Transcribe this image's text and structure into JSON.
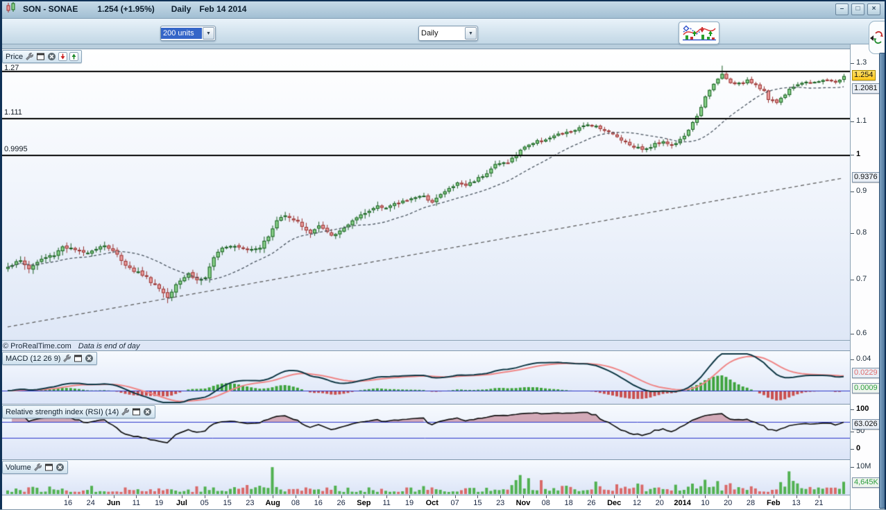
{
  "titlebar": {
    "symbol": "SON - SONAE",
    "quote": "1.254 (+1.95%)",
    "timeframe": "Daily",
    "date": "Feb 14 2014"
  },
  "window_controls": {
    "minimize": "–",
    "maximize": "□",
    "close": "×"
  },
  "toolbar": {
    "units_value": "200 units",
    "timeframe_value": "Daily"
  },
  "price_panel": {
    "title": "Price",
    "copyright": "© ProRealTime.com",
    "note": "Data is end of day",
    "level_labels": [
      "1.27",
      "1.111",
      "0.9995"
    ],
    "ticks": [
      "1.3",
      "1.1",
      "1",
      "0.9",
      "0.8",
      "0.7",
      "0.6"
    ],
    "badge_last": "1.254",
    "badge_ma_short": "1.2081",
    "badge_ma_long": "0.9376"
  },
  "macd_panel": {
    "title": "MACD (12 26 9)",
    "ticks": [
      "0.04"
    ],
    "badge_macd": "0.0229",
    "badge_signal": "0.0009"
  },
  "rsi_panel": {
    "title": "Relative strength index (RSI) (14)",
    "ticks": [
      "100",
      "50",
      "0"
    ],
    "badge": "63.026"
  },
  "volume_panel": {
    "title": "Volume",
    "ticks": [
      "10M"
    ],
    "badge": "4,645K"
  },
  "colors": {
    "up_fill": "#8bd48b",
    "up_border": "#145a1e",
    "down_fill": "#eb9c9c",
    "down_border": "#96312f",
    "ma_short": "#4a5560",
    "ma_long": "#555555",
    "level_line": "#000000",
    "macd_line": "#0e3744",
    "signal_line": "#ef8585",
    "zero_line": "#2b35c8",
    "hist_up": "#3da33d",
    "hist_down": "#c94f4f",
    "rsi_line": "#111111",
    "rsi_ref": "#2b35c8",
    "rsi_fill": "rgba(186,108,128,0.55)",
    "vol_up": "#51b151",
    "vol_down": "#d96a6a"
  },
  "chart_data": {
    "type": "candlestick",
    "title": "SON - SONAE Daily",
    "last_price": 1.254,
    "change_pct": "+1.95%",
    "visible_candles": 200,
    "scale": "log",
    "y_range": [
      0.59,
      1.31
    ],
    "price_axis_ticks": [
      1.3,
      1.1,
      1,
      0.9,
      0.8,
      0.7,
      0.6
    ],
    "horizontal_levels": [
      1.27,
      1.111,
      0.9995
    ],
    "ma_short_last": 1.2081,
    "ma_long_last": 0.9376,
    "ma_long_line": [
      [
        0,
        0.613
      ],
      [
        199,
        0.9376
      ]
    ],
    "close_anchors": [
      [
        0,
        0.73
      ],
      [
        3,
        0.74
      ],
      [
        5,
        0.724
      ],
      [
        8,
        0.744
      ],
      [
        11,
        0.754
      ],
      [
        13,
        0.772
      ],
      [
        15,
        0.766
      ],
      [
        18,
        0.757
      ],
      [
        21,
        0.768
      ],
      [
        23,
        0.775
      ],
      [
        26,
        0.752
      ],
      [
        29,
        0.724
      ],
      [
        32,
        0.712
      ],
      [
        35,
        0.692
      ],
      [
        38,
        0.668
      ],
      [
        40,
        0.695
      ],
      [
        43,
        0.714
      ],
      [
        45,
        0.7
      ],
      [
        47,
        0.706
      ],
      [
        49,
        0.744
      ],
      [
        51,
        0.772
      ],
      [
        54,
        0.775
      ],
      [
        57,
        0.766
      ],
      [
        60,
        0.771
      ],
      [
        62,
        0.793
      ],
      [
        64,
        0.83
      ],
      [
        66,
        0.846
      ],
      [
        68,
        0.833
      ],
      [
        70,
        0.818
      ],
      [
        72,
        0.8
      ],
      [
        74,
        0.818
      ],
      [
        76,
        0.801
      ],
      [
        78,
        0.796
      ],
      [
        80,
        0.815
      ],
      [
        83,
        0.835
      ],
      [
        86,
        0.853
      ],
      [
        88,
        0.868
      ],
      [
        90,
        0.862
      ],
      [
        93,
        0.873
      ],
      [
        96,
        0.887
      ],
      [
        99,
        0.888
      ],
      [
        101,
        0.878
      ],
      [
        104,
        0.902
      ],
      [
        107,
        0.924
      ],
      [
        109,
        0.918
      ],
      [
        112,
        0.938
      ],
      [
        114,
        0.953
      ],
      [
        116,
        0.974
      ],
      [
        119,
        0.982
      ],
      [
        121,
        1.001
      ],
      [
        123,
        1.027
      ],
      [
        126,
        1.041
      ],
      [
        129,
        1.052
      ],
      [
        131,
        1.061
      ],
      [
        133,
        1.067
      ],
      [
        136,
        1.08
      ],
      [
        138,
        1.093
      ],
      [
        140,
        1.088
      ],
      [
        143,
        1.068
      ],
      [
        146,
        1.047
      ],
      [
        148,
        1.031
      ],
      [
        150,
        1.022
      ],
      [
        152,
        1.018
      ],
      [
        154,
        1.033
      ],
      [
        156,
        1.043
      ],
      [
        158,
        1.028
      ],
      [
        160,
        1.045
      ],
      [
        162,
        1.073
      ],
      [
        164,
        1.121
      ],
      [
        166,
        1.181
      ],
      [
        168,
        1.225
      ],
      [
        170,
        1.262
      ],
      [
        171,
        1.243
      ],
      [
        173,
        1.223
      ],
      [
        175,
        1.231
      ],
      [
        176,
        1.243
      ],
      [
        178,
        1.223
      ],
      [
        180,
        1.201
      ],
      [
        181,
        1.172
      ],
      [
        183,
        1.163
      ],
      [
        185,
        1.193
      ],
      [
        187,
        1.219
      ],
      [
        189,
        1.231
      ],
      [
        192,
        1.235
      ],
      [
        194,
        1.241
      ],
      [
        197,
        1.232
      ],
      [
        199,
        1.254
      ]
    ],
    "macd": {
      "params": [
        12,
        26,
        9
      ],
      "last": 0.0229,
      "signal_last": 0.0009,
      "axis_tick": 0.04
    },
    "rsi": {
      "period": 14,
      "last": 63.026,
      "upper": 70,
      "lower": 30,
      "range": [
        0,
        100
      ]
    },
    "volume": {
      "axis_tick_millions": 10,
      "last_label": "4,645K",
      "spikes": [
        [
          63,
          10.2
        ],
        [
          122,
          7.2
        ],
        [
          186,
          8.6
        ],
        [
          199,
          4.645
        ]
      ],
      "boost_ranges": [
        [
          55,
          70,
          1.6
        ],
        [
          118,
          127,
          1.8
        ],
        [
          140,
          155,
          1.5
        ],
        [
          158,
          172,
          1.9
        ],
        [
          182,
          193,
          1.9
        ]
      ]
    },
    "x_labels": [
      {
        "t": "16"
      },
      {
        "t": "24"
      },
      {
        "t": "Jun",
        "bold": true
      },
      {
        "t": "11"
      },
      {
        "t": "19"
      },
      {
        "t": "Jul",
        "bold": true
      },
      {
        "t": "05"
      },
      {
        "t": "15"
      },
      {
        "t": "23"
      },
      {
        "t": "Aug",
        "bold": true
      },
      {
        "t": "08"
      },
      {
        "t": "16"
      },
      {
        "t": "26"
      },
      {
        "t": "Sep",
        "bold": true
      },
      {
        "t": "11"
      },
      {
        "t": "19"
      },
      {
        "t": "Oct",
        "bold": true
      },
      {
        "t": "07"
      },
      {
        "t": "15"
      },
      {
        "t": "23"
      },
      {
        "t": "Nov",
        "bold": true
      },
      {
        "t": "08"
      },
      {
        "t": "18"
      },
      {
        "t": "26"
      },
      {
        "t": "Dec",
        "bold": true
      },
      {
        "t": "12"
      },
      {
        "t": "20"
      },
      {
        "t": "2014",
        "bold": true
      },
      {
        "t": "10"
      },
      {
        "t": "20"
      },
      {
        "t": "28"
      },
      {
        "t": "Feb",
        "bold": true
      },
      {
        "t": "13"
      },
      {
        "t": "21"
      }
    ]
  }
}
